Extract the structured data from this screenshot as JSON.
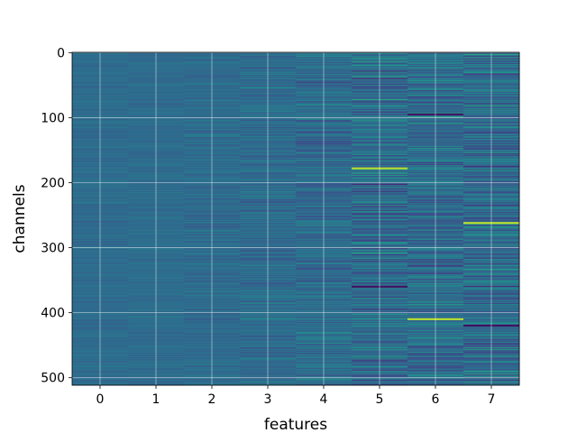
{
  "chart_data": {
    "type": "heatmap",
    "title": "",
    "xlabel": "features",
    "ylabel": "channels",
    "n_columns": 8,
    "n_rows": 512,
    "xlim": [
      -0.5,
      7.5
    ],
    "ylim": [
      511.5,
      -0.5
    ],
    "x_ticks": [
      0,
      1,
      2,
      3,
      4,
      5,
      6,
      7
    ],
    "x_tick_labels": [
      "0",
      "1",
      "2",
      "3",
      "4",
      "5",
      "6",
      "7"
    ],
    "y_ticks": [
      0,
      100,
      200,
      300,
      400,
      500
    ],
    "y_tick_labels": [
      "0",
      "100",
      "200",
      "300",
      "400",
      "500"
    ],
    "grid": true,
    "colormap": "viridis",
    "column_spread": [
      0.05,
      0.05,
      0.07,
      0.1,
      0.13,
      0.2,
      0.18,
      0.2
    ],
    "notable_bands": [
      {
        "column": 5,
        "row": 178,
        "level": "high"
      },
      {
        "column": 7,
        "row": 262,
        "level": "high"
      },
      {
        "column": 6,
        "row": 410,
        "level": "high"
      },
      {
        "column": 5,
        "row": 360,
        "level": "low"
      },
      {
        "column": 6,
        "row": 95,
        "level": "low"
      },
      {
        "column": 7,
        "row": 420,
        "level": "low"
      }
    ],
    "colors": {
      "grid": "#ffffff",
      "spine": "#000000",
      "background": "#ffffff"
    }
  }
}
